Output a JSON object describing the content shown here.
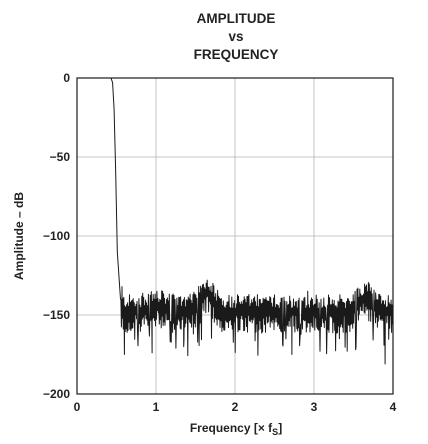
{
  "chart_data": {
    "type": "line",
    "title_lines": [
      "AMPLITUDE",
      "vs",
      "FREQUENCY"
    ],
    "xlabel": "Frequency [× f",
    "xlabel_sub": "S",
    "xlabel_close": "]",
    "ylabel": "Amplitude – dB",
    "xlim": [
      0,
      4
    ],
    "ylim": [
      -200,
      0
    ],
    "x_ticks": [
      0,
      1,
      2,
      3,
      4
    ],
    "y_ticks": [
      0,
      -50,
      -100,
      -150,
      -200
    ],
    "x_tick_labels": [
      "0",
      "1",
      "2",
      "3",
      "4"
    ],
    "y_tick_labels": [
      "0",
      "−50",
      "−100",
      "−150",
      "−200"
    ],
    "grid": true,
    "line_color": "#1a1a1a",
    "grid_color": "#b5b5b5",
    "passband": {
      "x_end": 0.45,
      "level": 0
    },
    "transition": {
      "x_start": 0.45,
      "x_end": 0.55,
      "level_end": -140
    },
    "noise_floor": {
      "x_start": 0.55,
      "x_end": 4.0,
      "mean_level": -148,
      "peaks": [
        {
          "x": 0.57,
          "y": -132
        },
        {
          "x": 1.58,
          "y": -133
        },
        {
          "x": 1.72,
          "y": -130
        },
        {
          "x": 2.92,
          "y": -135
        },
        {
          "x": 3.58,
          "y": -134
        },
        {
          "x": 3.78,
          "y": -136
        }
      ],
      "troughs": [
        {
          "x": 0.6,
          "y": -175
        },
        {
          "x": 0.95,
          "y": -174
        },
        {
          "x": 1.35,
          "y": -170
        },
        {
          "x": 2.72,
          "y": -175
        },
        {
          "x": 3.42,
          "y": -173
        },
        {
          "x": 3.9,
          "y": -181
        }
      ]
    }
  }
}
